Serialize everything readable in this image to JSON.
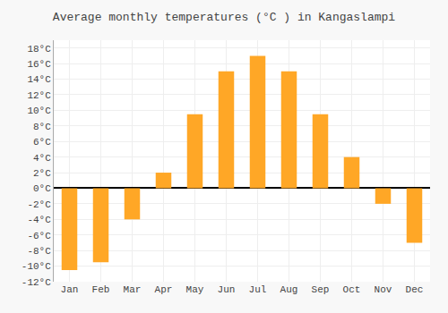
{
  "chart_data": {
    "type": "bar",
    "title": "Average monthly temperatures (°C ) in Kangaslampi",
    "categories": [
      "Jan",
      "Feb",
      "Mar",
      "Apr",
      "May",
      "Jun",
      "Jul",
      "Aug",
      "Sep",
      "Oct",
      "Nov",
      "Dec"
    ],
    "values": [
      -10.5,
      -9.5,
      -4.0,
      2.0,
      9.5,
      15.0,
      17.0,
      15.0,
      9.5,
      4.0,
      -2.0,
      -7.0
    ],
    "color": "#FFA726",
    "ylim": [
      -12,
      19
    ],
    "yticks": [
      {
        "value": -12,
        "label": "-12°C"
      },
      {
        "value": -10,
        "label": "-10°C"
      },
      {
        "value": -8,
        "label": "-8°C"
      },
      {
        "value": -6,
        "label": "-6°C"
      },
      {
        "value": -4,
        "label": "-4°C"
      },
      {
        "value": -2,
        "label": "-2°C"
      },
      {
        "value": 0,
        "label": "0°C"
      },
      {
        "value": 2,
        "label": "2°C"
      },
      {
        "value": 4,
        "label": "4°C"
      },
      {
        "value": 6,
        "label": "6°C"
      },
      {
        "value": 8,
        "label": "8°C"
      },
      {
        "value": 10,
        "label": "10°C"
      },
      {
        "value": 12,
        "label": "12°C"
      },
      {
        "value": 14,
        "label": "14°C"
      },
      {
        "value": 16,
        "label": "16°C"
      },
      {
        "value": 18,
        "label": "18°C"
      }
    ],
    "grid": true
  }
}
